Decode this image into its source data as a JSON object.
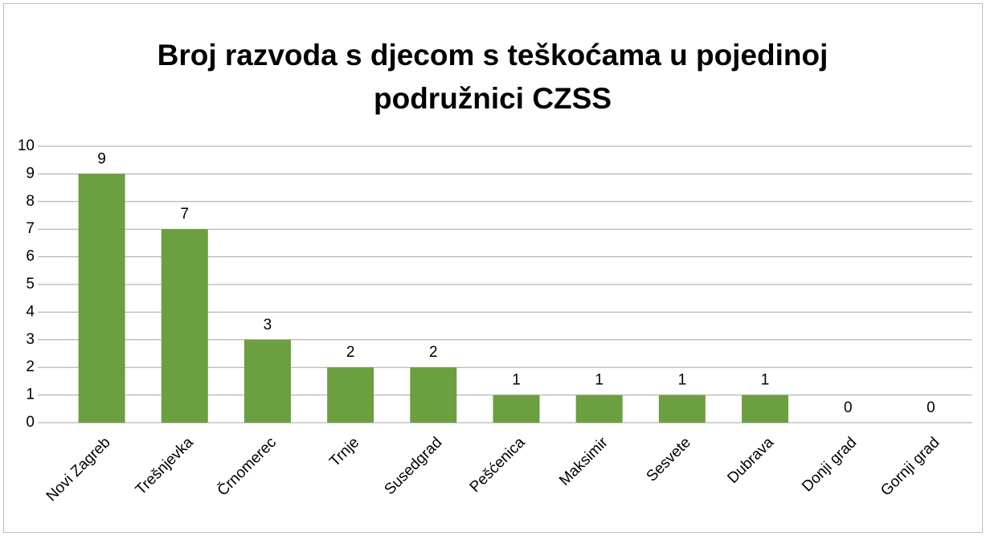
{
  "chart_data": {
    "type": "bar",
    "title": "Broj razvoda s djecom s teškoćama u pojedinoj podružnici CZSS",
    "categories": [
      "Novi Zagreb",
      "Trešnjevka",
      "Črnomerec",
      "Trnje",
      "Susedgrad",
      "Pešćenica",
      "Maksimir",
      "Sesvete",
      "Dubrava",
      "Donji grad",
      "Gornji grad"
    ],
    "values": [
      9,
      7,
      3,
      2,
      2,
      1,
      1,
      1,
      1,
      0,
      0
    ],
    "color": "#6b9f40",
    "ylim": [
      0,
      10
    ],
    "yticks": [
      0,
      1,
      2,
      3,
      4,
      5,
      6,
      7,
      8,
      9,
      10
    ],
    "grid": true
  }
}
